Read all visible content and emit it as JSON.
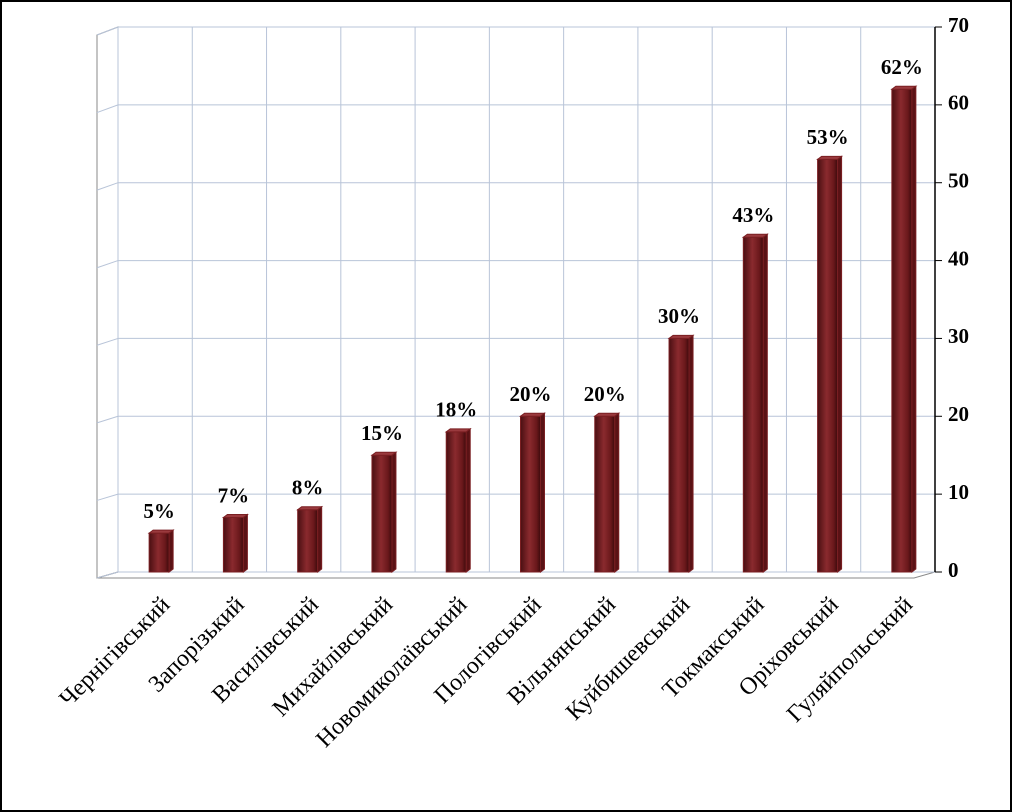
{
  "chart_data": {
    "type": "bar",
    "categories": [
      "Чернігівський",
      "Запорізький",
      "Василівський",
      "Михайлівський",
      "Новомиколаївський",
      "Пологівський",
      "Вільнянський",
      "Куйбишевський",
      "Токмакський",
      "Оріховський",
      "Гуляйпольський"
    ],
    "values": [
      5,
      7,
      8,
      15,
      18,
      20,
      20,
      30,
      43,
      53,
      62
    ],
    "value_labels": [
      "5%",
      "7%",
      "8%",
      "15%",
      "18%",
      "20%",
      "20%",
      "30%",
      "43%",
      "53%",
      "62%"
    ],
    "color": "#7a1f22",
    "ylim": [
      0,
      70
    ],
    "yticks": [
      0,
      10,
      20,
      30,
      40,
      50,
      60,
      70
    ],
    "grid": true
  }
}
